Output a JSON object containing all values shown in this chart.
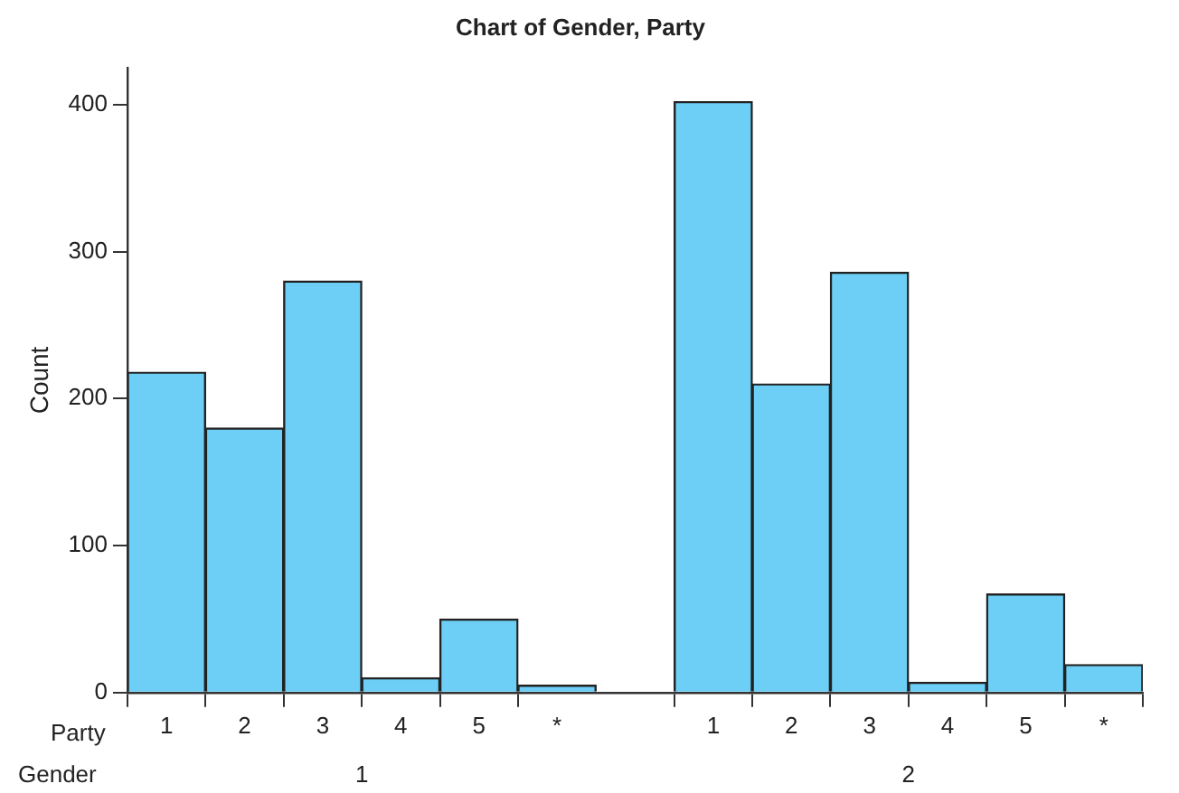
{
  "chart_data": {
    "type": "bar",
    "title": "Chart of Gender, Party",
    "ylabel": "Count",
    "categories": [
      "1",
      "2",
      "3",
      "4",
      "5",
      "*",
      null,
      "1",
      "2",
      "3",
      "4",
      "5",
      "*"
    ],
    "values": [
      218,
      180,
      280,
      10,
      50,
      5,
      null,
      402,
      210,
      286,
      7,
      67,
      19
    ],
    "color": "#6dcff6",
    "ylim": [
      0,
      425
    ],
    "yticks": [
      0,
      100,
      200,
      300,
      400
    ],
    "annotations": [
      "Party",
      "Gender",
      "1",
      "2"
    ],
    "grid": false,
    "legend": false
  }
}
